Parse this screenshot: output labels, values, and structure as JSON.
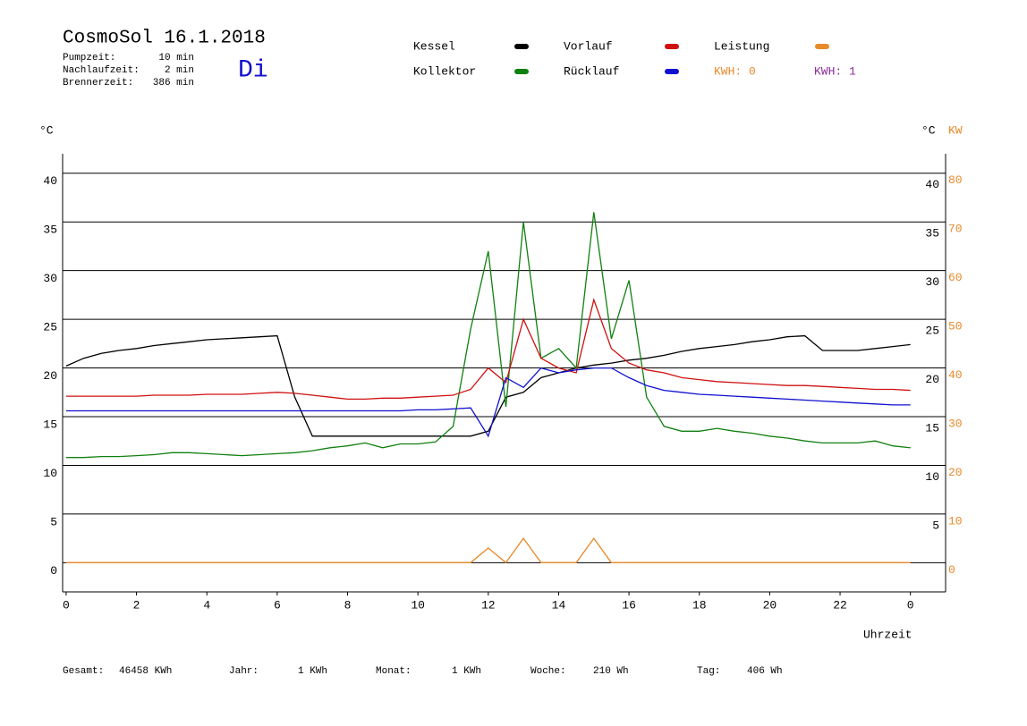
{
  "chart_data": {
    "type": "line",
    "title": "CosmoSol 16.1.2018",
    "weekday": "Di",
    "info": [
      [
        "Pumpzeit:",
        "10 min"
      ],
      [
        "Nachlaufzeit:",
        "2 min"
      ],
      [
        "Brennerzeit:",
        "386 min"
      ]
    ],
    "y_unit": "°C",
    "y_right_unit": "°C",
    "y2_unit": "KW",
    "x_label": "Uhrzeit",
    "kwh_labels": [
      {
        "text": "KWH: 0",
        "color": "#e8892a"
      },
      {
        "text": "KWH: 1",
        "color": "#8a2a9a"
      }
    ],
    "x": [
      0,
      0.5,
      1,
      1.5,
      2,
      2.5,
      3,
      3.5,
      4,
      4.5,
      5,
      5.5,
      6,
      6.5,
      7,
      7.5,
      8,
      8.5,
      9,
      9.5,
      10,
      10.5,
      11,
      11.5,
      12,
      12.5,
      13,
      13.5,
      14,
      14.5,
      15,
      15.5,
      16,
      16.5,
      17,
      17.5,
      18,
      18.5,
      19,
      19.5,
      20,
      20.5,
      21,
      21.5,
      22,
      22.5,
      23,
      23.5,
      24
    ],
    "xlim": [
      -0.1,
      25
    ],
    "xticks": [
      0,
      2,
      4,
      6,
      8,
      10,
      12,
      14,
      16,
      18,
      20,
      22,
      {
        "value": 24,
        "label": "0"
      }
    ],
    "ylim": [
      -3,
      42
    ],
    "yticks": [
      0,
      5,
      10,
      15,
      20,
      25,
      30,
      35,
      40
    ],
    "y_right_ticks": [
      5,
      10,
      15,
      20,
      25,
      30,
      35,
      40
    ],
    "y2lim": [
      -6,
      84
    ],
    "y2ticks": [
      0,
      10,
      20,
      30,
      40,
      50,
      60,
      70,
      80
    ],
    "grid": true,
    "series": [
      {
        "name": "Kessel",
        "color": "#000000",
        "values": [
          20.2,
          21,
          21.5,
          21.8,
          22,
          22.3,
          22.5,
          22.7,
          22.9,
          23,
          23.1,
          23.2,
          23.3,
          17,
          13,
          13,
          13,
          13,
          13,
          13,
          13,
          13,
          13,
          13,
          13.5,
          17,
          17.5,
          19,
          19.5,
          20,
          20.3,
          20.5,
          20.8,
          21,
          21.3,
          21.7,
          22,
          22.2,
          22.4,
          22.7,
          22.9,
          23.2,
          23.3,
          21.8,
          21.8,
          21.8,
          22,
          22.2,
          22.4
        ]
      },
      {
        "name": "Kollektor",
        "color": "#108010",
        "values": [
          10.8,
          10.8,
          10.9,
          10.9,
          11,
          11.1,
          11.3,
          11.3,
          11.2,
          11.1,
          11,
          11.1,
          11.2,
          11.3,
          11.5,
          11.8,
          12,
          12.3,
          11.8,
          12.2,
          12.2,
          12.4,
          14,
          24,
          32,
          16,
          35,
          21,
          22,
          20,
          36,
          23,
          29,
          17,
          14,
          13.5,
          13.5,
          13.8,
          13.5,
          13.3,
          13,
          12.8,
          12.5,
          12.3,
          12.3,
          12.3,
          12.5,
          12,
          11.8
        ]
      },
      {
        "name": "Vorlauf",
        "color": "#d01010",
        "values": [
          17.1,
          17.1,
          17.1,
          17.1,
          17.1,
          17.2,
          17.2,
          17.2,
          17.3,
          17.3,
          17.3,
          17.4,
          17.5,
          17.4,
          17.2,
          17,
          16.8,
          16.8,
          16.9,
          16.9,
          17,
          17.1,
          17.2,
          17.8,
          20,
          18.5,
          25,
          21,
          20,
          19.5,
          27,
          22,
          20.5,
          19.8,
          19.5,
          19,
          18.8,
          18.6,
          18.5,
          18.4,
          18.3,
          18.2,
          18.2,
          18.1,
          18,
          17.9,
          17.8,
          17.8,
          17.7
        ]
      },
      {
        "name": "Rücklauf",
        "color": "#1010d0",
        "values": [
          15.6,
          15.6,
          15.6,
          15.6,
          15.6,
          15.6,
          15.6,
          15.6,
          15.6,
          15.6,
          15.6,
          15.6,
          15.6,
          15.6,
          15.6,
          15.6,
          15.6,
          15.6,
          15.6,
          15.6,
          15.7,
          15.7,
          15.8,
          15.9,
          13,
          19,
          18,
          20,
          19.5,
          19.8,
          20,
          20,
          19,
          18.2,
          17.7,
          17.5,
          17.3,
          17.2,
          17.1,
          17,
          16.9,
          16.8,
          16.7,
          16.6,
          16.5,
          16.4,
          16.3,
          16.2,
          16.2
        ]
      },
      {
        "name": "Leistung",
        "color": "#e8892a",
        "axis": "y2",
        "values": [
          0,
          0,
          0,
          0,
          0,
          0,
          0,
          0,
          0,
          0,
          0,
          0,
          0,
          0,
          0,
          0,
          0,
          0,
          0,
          0,
          0,
          0,
          0,
          0,
          3,
          0,
          5,
          0,
          0,
          0,
          5,
          0,
          0,
          0,
          0,
          0,
          0,
          0,
          0,
          0,
          0,
          0,
          0,
          0,
          0,
          0,
          0,
          0,
          0
        ]
      }
    ],
    "footer": [
      [
        "Gesamt:",
        "46458 KWh"
      ],
      [
        "Jahr:",
        "1 KWh"
      ],
      [
        "Monat:",
        "1 KWh"
      ],
      [
        "Woche:",
        "210 Wh"
      ],
      [
        "Tag:",
        "406 Wh"
      ]
    ]
  }
}
